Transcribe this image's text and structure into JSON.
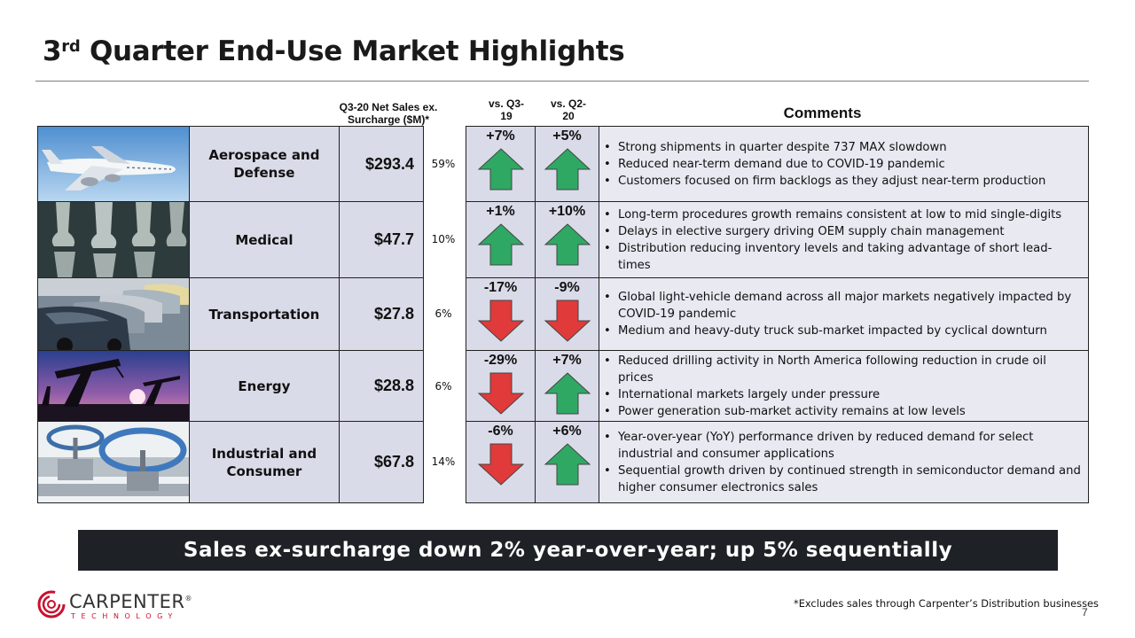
{
  "title": {
    "main": "3",
    "sup": "rd",
    "rest": " Quarter End-Use Market Highlights"
  },
  "headers": {
    "sales": "Q3-20 Net Sales ex. Surcharge ($M)*",
    "vs_prior_year": "vs. Q3-19",
    "vs_prior_quarter": "vs. Q2-20",
    "comments": "Comments"
  },
  "rows": [
    {
      "market": "Aerospace and Defense",
      "image": "airplane",
      "sales": "$293.4",
      "share": "59%",
      "yoy": "+7%",
      "yoy_dir": "up",
      "qoq": "+5%",
      "qoq_dir": "up",
      "comments": [
        "Strong shipments in quarter despite 737 MAX slowdown",
        "Reduced near-term demand due to COVID-19 pandemic",
        "Customers focused on firm backlogs as they adjust near-term production"
      ]
    },
    {
      "market": "Medical",
      "image": "knee-xray",
      "sales": "$47.7",
      "share": "10%",
      "yoy": "+1%",
      "yoy_dir": "up",
      "qoq": "+10%",
      "qoq_dir": "up",
      "comments": [
        "Long-term procedures growth remains consistent at low to mid single-digits",
        "Delays in elective surgery driving OEM supply chain management",
        "Distribution reducing inventory levels and taking advantage of short lead-times"
      ]
    },
    {
      "market": "Transportation",
      "image": "cars",
      "sales": "$27.8",
      "share": "6%",
      "yoy": "-17%",
      "yoy_dir": "down",
      "qoq": "-9%",
      "qoq_dir": "down",
      "comments": [
        "Global light-vehicle demand across all major markets negatively impacted by COVID-19 pandemic",
        "Medium and heavy-duty truck sub-market impacted by cyclical downturn"
      ]
    },
    {
      "market": "Energy",
      "image": "oil-pumps",
      "sales": "$28.8",
      "share": "6%",
      "yoy": "-29%",
      "yoy_dir": "down",
      "qoq": "+7%",
      "qoq_dir": "up",
      "comments": [
        "Reduced drilling activity in North America following reduction in crude oil prices",
        "International markets largely under pressure",
        "Power generation sub-market activity remains at low levels"
      ]
    },
    {
      "market": "Industrial and Consumer",
      "image": "valves",
      "sales": "$67.8",
      "share": "14%",
      "yoy": "-6%",
      "yoy_dir": "down",
      "qoq": "+6%",
      "qoq_dir": "up",
      "comments": [
        "Year-over-year (YoY) performance driven by reduced demand for select industrial and consumer applications",
        "Sequential growth driven by continued strength in semiconductor demand and higher consumer electronics sales"
      ]
    }
  ],
  "banner": "Sales ex-surcharge down 2% year-over-year; up 5% sequentially",
  "logo": {
    "word": "CARPENTER",
    "sub": "TECHNOLOGY",
    "mark": "®"
  },
  "footnote": "*Excludes sales through Carpenter’s Distribution businesses",
  "page_number": "7",
  "colors": {
    "up": "#2fa864",
    "down": "#e03a3a",
    "cell_bg": "#d9dbe8",
    "comment_bg": "#e8e9f1",
    "banner_bg": "#1e2226",
    "brand_red": "#c8102e"
  }
}
